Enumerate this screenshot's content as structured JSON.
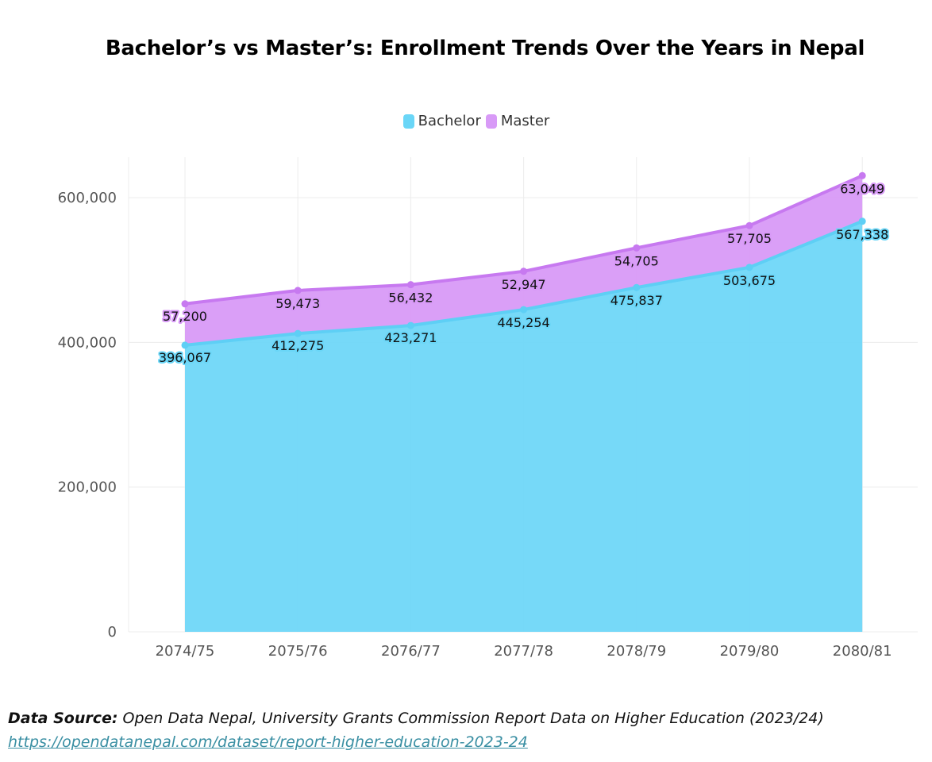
{
  "chart_data": {
    "type": "area",
    "stacked": true,
    "title": "Bachelor’s vs Master’s: Enrollment Trends Over the Years in Nepal",
    "categories": [
      "2074/75",
      "2075/76",
      "2076/77",
      "2077/78",
      "2078/79",
      "2079/80",
      "2080/81"
    ],
    "series": [
      {
        "name": "Bachelor",
        "color": "#6ad6f7",
        "line_color": "#5ecff5",
        "values": [
          396067,
          412275,
          423271,
          445254,
          475837,
          503675,
          567338
        ],
        "labels": [
          "396,067",
          "412,275",
          "423,271",
          "445,254",
          "475,837",
          "503,675",
          "567,338"
        ]
      },
      {
        "name": "Master",
        "color": "#d89af7",
        "line_color": "#c779f0",
        "values": [
          57200,
          59473,
          56432,
          52947,
          54705,
          57705,
          63049
        ],
        "labels": [
          "57,200",
          "59,473",
          "56,432",
          "52,947",
          "54,705",
          "57,705",
          "63,049"
        ]
      }
    ],
    "ylim": [
      0,
      600000
    ],
    "yticks": [
      0,
      200000,
      400000,
      600000
    ],
    "ytick_labels": [
      "0",
      "200,000",
      "400,000",
      "600,000"
    ],
    "legend": "top-center",
    "grid": true
  },
  "source": {
    "label": "Data Source:",
    "text": "Open Data Nepal, University Grants Commission Report Data on Higher Education (2023/24)",
    "url": "https://opendatanepal.com/dataset/report-higher-education-2023-24"
  }
}
